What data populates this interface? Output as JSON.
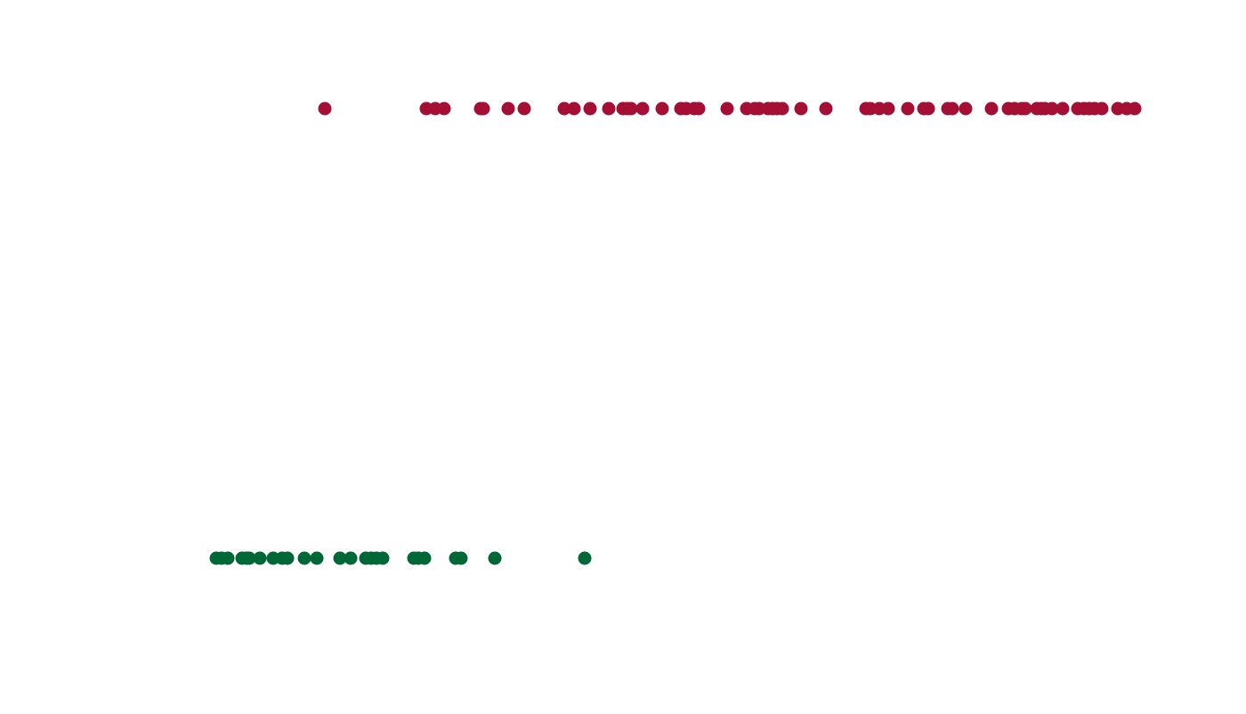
{
  "chart_data": {
    "type": "strip",
    "xlim": [
      0,
      1400
    ],
    "series": [
      {
        "color": "#a50f34",
        "values": [
          365,
          479,
          489,
          499,
          540,
          543,
          571,
          589,
          634,
          645,
          663,
          684,
          700,
          705,
          709,
          722,
          744,
          765,
          771,
          780,
          785,
          817,
          839,
          848,
          853,
          863,
          868,
          873,
          879,
          900,
          928,
          973,
          978,
          988,
          998,
          1020,
          1038,
          1043,
          1065,
          1070,
          1085,
          1114,
          1133,
          1140,
          1148,
          1152,
          1165,
          1170,
          1174,
          1182,
          1194,
          1211,
          1218,
          1224,
          1230,
          1238,
          1256,
          1266,
          1275
        ]
      },
      {
        "color": "#006837",
        "values": [
          243,
          249,
          256,
          272,
          277,
          280,
          292,
          307,
          317,
          323,
          342,
          356,
          382,
          394,
          411,
          417,
          423,
          430,
          465,
          470,
          477,
          512,
          518,
          556,
          657
        ]
      }
    ]
  }
}
